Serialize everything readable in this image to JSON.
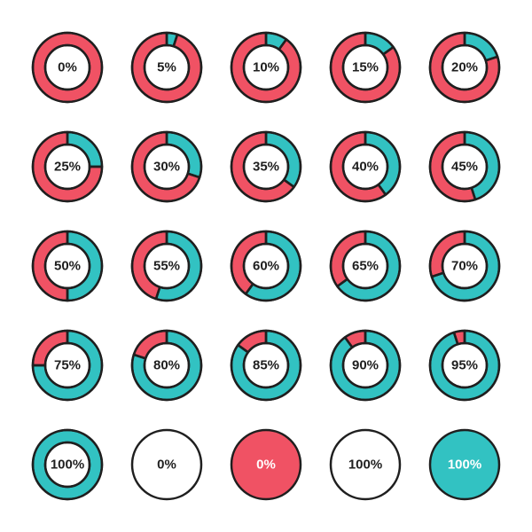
{
  "background_color": "#ffffff",
  "grid": {
    "cols": 5,
    "rows": 5,
    "cell_size": 112
  },
  "donut_defaults": {
    "outer_radius": 39,
    "inner_radius": 25,
    "stroke_color": "#1f1f1f",
    "stroke_width": 2.5,
    "start_angle_deg": -90,
    "primary_color": "#32c2c2",
    "secondary_color": "#f05264",
    "label_fontsize": 15,
    "label_color": "#1f1f1f",
    "divider": true
  },
  "items": [
    {
      "percent": 0,
      "label": "0%"
    },
    {
      "percent": 5,
      "label": "5%"
    },
    {
      "percent": 10,
      "label": "10%"
    },
    {
      "percent": 15,
      "label": "15%"
    },
    {
      "percent": 20,
      "label": "20%"
    },
    {
      "percent": 25,
      "label": "25%"
    },
    {
      "percent": 30,
      "label": "30%"
    },
    {
      "percent": 35,
      "label": "35%"
    },
    {
      "percent": 40,
      "label": "40%"
    },
    {
      "percent": 45,
      "label": "45%"
    },
    {
      "percent": 50,
      "label": "50%"
    },
    {
      "percent": 55,
      "label": "55%"
    },
    {
      "percent": 60,
      "label": "60%"
    },
    {
      "percent": 65,
      "label": "65%"
    },
    {
      "percent": 70,
      "label": "70%"
    },
    {
      "percent": 75,
      "label": "75%"
    },
    {
      "percent": 80,
      "label": "80%"
    },
    {
      "percent": 85,
      "label": "85%"
    },
    {
      "percent": 90,
      "label": "90%"
    },
    {
      "percent": 95,
      "label": "95%"
    },
    {
      "percent": 100,
      "label": "100%"
    },
    {
      "variant": "solid",
      "fill_color": "#ffffff",
      "label": "0%",
      "label_color": "#1f1f1f"
    },
    {
      "variant": "solid",
      "fill_color": "#f05264",
      "label": "0%",
      "label_color": "#ffffff"
    },
    {
      "variant": "solid",
      "fill_color": "#ffffff",
      "label": "100%",
      "label_color": "#1f1f1f"
    },
    {
      "variant": "solid",
      "fill_color": "#32c2c2",
      "label": "100%",
      "label_color": "#ffffff"
    }
  ]
}
